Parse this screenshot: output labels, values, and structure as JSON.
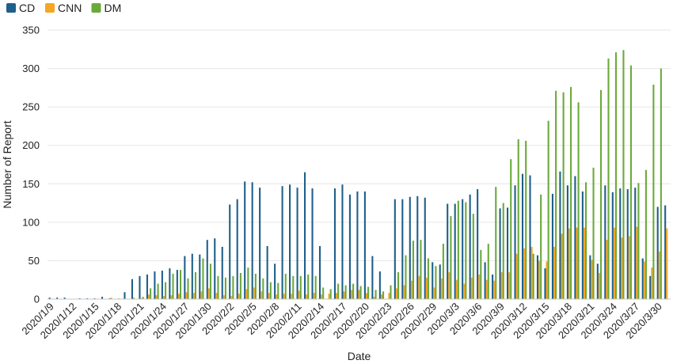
{
  "chart_data": {
    "type": "bar",
    "xlabel": "Date",
    "ylabel": "Number of Report",
    "ylim": [
      0,
      350
    ],
    "yticks": [
      0,
      50,
      100,
      150,
      200,
      250,
      300,
      350
    ],
    "grid": true,
    "legend_position": "top-left",
    "categories": [
      "2020/1/9",
      "2020/1/10",
      "2020/1/11",
      "2020/1/12",
      "2020/1/13",
      "2020/1/14",
      "2020/1/15",
      "2020/1/16",
      "2020/1/17",
      "2020/1/18",
      "2020/1/19",
      "2020/1/20",
      "2020/1/21",
      "2020/1/22",
      "2020/1/23",
      "2020/1/24",
      "2020/1/25",
      "2020/1/26",
      "2020/1/27",
      "2020/1/28",
      "2020/1/29",
      "2020/1/30",
      "2020/1/31",
      "2020/2/1",
      "2020/2/2",
      "2020/2/3",
      "2020/2/4",
      "2020/2/5",
      "2020/2/6",
      "2020/2/7",
      "2020/2/8",
      "2020/2/9",
      "2020/2/10",
      "2020/2/11",
      "2020/2/12",
      "2020/2/13",
      "2020/2/14",
      "2020/2/15",
      "2020/2/16",
      "2020/2/17",
      "2020/2/18",
      "2020/2/19",
      "2020/2/20",
      "2020/2/21",
      "2020/2/22",
      "2020/2/23",
      "2020/2/24",
      "2020/2/25",
      "2020/2/26",
      "2020/2/27",
      "2020/2/28",
      "2020/2/29",
      "2020/3/1",
      "2020/3/2",
      "2020/3/3",
      "2020/3/4",
      "2020/3/5",
      "2020/3/6",
      "2020/3/7",
      "2020/3/8",
      "2020/3/9",
      "2020/3/10",
      "2020/3/11",
      "2020/3/12",
      "2020/3/13",
      "2020/3/14",
      "2020/3/15",
      "2020/3/16",
      "2020/3/17",
      "2020/3/18",
      "2020/3/19",
      "2020/3/20",
      "2020/3/21",
      "2020/3/22",
      "2020/3/23",
      "2020/3/24",
      "2020/3/25",
      "2020/3/26",
      "2020/3/27",
      "2020/3/28",
      "2020/3/29",
      "2020/3/30",
      "2020/3/31"
    ],
    "tick_labels": [
      "2020/1/9",
      "2020/1/12",
      "2020/1/15",
      "2020/1/18",
      "2020/1/21",
      "2020/1/24",
      "2020/1/27",
      "2020/1/30",
      "2020/2/2",
      "2020/2/5",
      "2020/2/8",
      "2020/2/11",
      "2020/2/14",
      "2020/2/17",
      "2020/2/20",
      "2020/2/23",
      "2020/2/26",
      "2020/2/29",
      "2020/3/3",
      "2020/3/6",
      "2020/3/9",
      "2020/3/12",
      "2020/3/15",
      "2020/3/18",
      "2020/3/21",
      "2020/3/24",
      "2020/3/27",
      "2020/3/30"
    ],
    "series": [
      {
        "name": "CD",
        "color": "#1f5f8b",
        "values": [
          2,
          2,
          2,
          0,
          1,
          1,
          1,
          3,
          1,
          0,
          9,
          26,
          30,
          32,
          36,
          37,
          40,
          38,
          56,
          59,
          58,
          77,
          79,
          68,
          123,
          130,
          153,
          152,
          145,
          69,
          46,
          147,
          149,
          145,
          165,
          144,
          69,
          0,
          144,
          149,
          136,
          140,
          140,
          56,
          36,
          0,
          130,
          130,
          133,
          134,
          132,
          48,
          45,
          124,
          124,
          130,
          136,
          143,
          48,
          32,
          118,
          119,
          148,
          163,
          161,
          57,
          40,
          137,
          166,
          148,
          160,
          140,
          57,
          46,
          148,
          139,
          144,
          143,
          145,
          53,
          30,
          120,
          122
        ]
      },
      {
        "name": "CNN",
        "color": "#f5a623",
        "values": [
          0,
          0,
          0,
          0,
          0,
          0,
          0,
          0,
          2,
          1,
          0,
          2,
          1,
          6,
          5,
          4,
          5,
          7,
          9,
          8,
          10,
          14,
          8,
          5,
          4,
          7,
          13,
          15,
          10,
          8,
          6,
          7,
          7,
          11,
          6,
          8,
          6,
          7,
          8,
          10,
          12,
          12,
          8,
          3,
          6,
          8,
          14,
          18,
          24,
          30,
          28,
          15,
          27,
          35,
          25,
          20,
          28,
          32,
          25,
          24,
          35,
          35,
          59,
          66,
          68,
          50,
          49,
          68,
          85,
          92,
          93,
          93,
          51,
          34,
          77,
          93,
          80,
          82,
          94,
          49,
          41,
          62,
          92
        ]
      },
      {
        "name": "DM",
        "color": "#6aaa3a",
        "values": [
          0,
          0,
          0,
          0,
          0,
          0,
          0,
          0,
          0,
          0,
          0,
          0,
          3,
          14,
          20,
          22,
          33,
          38,
          27,
          35,
          53,
          46,
          30,
          28,
          30,
          34,
          41,
          33,
          27,
          22,
          21,
          33,
          30,
          30,
          32,
          30,
          15,
          13,
          20,
          18,
          20,
          17,
          16,
          12,
          10,
          18,
          35,
          57,
          76,
          77,
          53,
          43,
          72,
          108,
          128,
          126,
          111,
          64,
          72,
          146,
          125,
          182,
          208,
          206,
          59,
          136,
          232,
          271,
          269,
          276,
          256,
          152,
          171,
          272,
          313,
          321,
          324,
          304,
          151,
          168,
          279,
          300,
          0
        ]
      }
    ]
  }
}
